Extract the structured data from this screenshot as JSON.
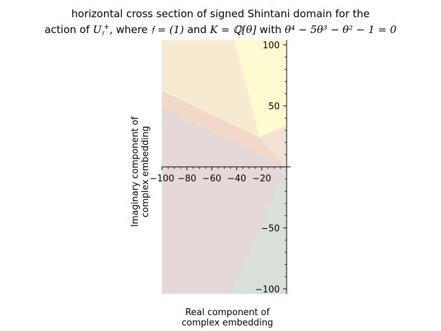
{
  "title": {
    "line1": "horizontal cross section of signed Shintani domain for the",
    "line2_prefix": "action of ",
    "line2_U": "U",
    "line2_sub": "𝔣",
    "line2_sup": "+",
    "line2_mid1": ", where ",
    "line2_f": "𝔣 = (1)",
    "line2_and": " and ",
    "line2_K": "K = ℚ[θ]",
    "line2_with": " with ",
    "line2_poly": "θ⁴ − 5θ³ − θ² − 1 = 0"
  },
  "chart_data": {
    "type": "area",
    "xlabel": "Real component of\ncomplex embedding",
    "ylabel": "Imaginary component of\ncomplex embedding",
    "xlim": [
      -100,
      0
    ],
    "ylim": [
      -104,
      104
    ],
    "x_ticks": [
      -100,
      -80,
      -60,
      -40,
      -20
    ],
    "y_ticks": [
      -100,
      -50,
      50,
      100
    ],
    "x_tick_labels": [
      "−100",
      "−80",
      "−60",
      "−40",
      "−20"
    ],
    "y_tick_labels": [
      "−100",
      "−50",
      "50",
      "100"
    ],
    "grid": false,
    "regions": [
      {
        "color": "#fffbd0",
        "polygon": [
          [
            -42,
            104
          ],
          [
            0,
            104
          ],
          [
            0,
            34
          ],
          [
            -22,
            24
          ]
        ]
      },
      {
        "color": "#f6ebd0",
        "polygon": [
          [
            -100,
            104
          ],
          [
            -42,
            104
          ],
          [
            -22,
            24
          ],
          [
            -100,
            62
          ]
        ]
      },
      {
        "color": "#f2d8c8",
        "polygon": [
          [
            -100,
            62
          ],
          [
            -22,
            24
          ],
          [
            0,
            0
          ],
          [
            -100,
            48
          ]
        ]
      },
      {
        "color": "#f3e3d6",
        "polygon": [
          [
            -22,
            24
          ],
          [
            0,
            34
          ],
          [
            0,
            0
          ]
        ]
      },
      {
        "color": "#e4d8d8",
        "polygon": [
          [
            -100,
            48
          ],
          [
            0,
            0
          ],
          [
            -45,
            -104
          ],
          [
            -100,
            -104
          ]
        ]
      },
      {
        "color": "#d8e0d8",
        "polygon": [
          [
            0,
            0
          ],
          [
            0,
            -104
          ],
          [
            -45,
            -104
          ]
        ]
      }
    ]
  }
}
